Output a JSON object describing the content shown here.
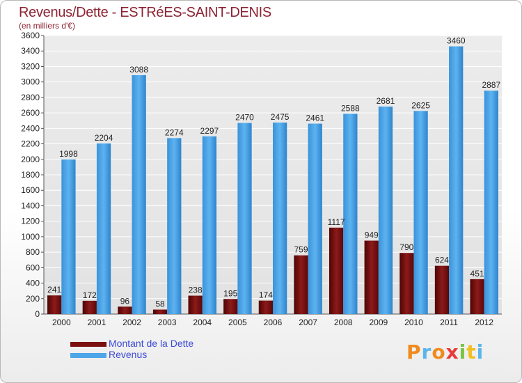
{
  "chart_data": {
    "type": "bar",
    "title": "Revenus/Dette - ESTRéES-SAINT-DENIS",
    "subtitle": "(en milliers d'€)",
    "categories": [
      "2000",
      "2001",
      "2002",
      "2003",
      "2004",
      "2005",
      "2006",
      "2007",
      "2008",
      "2009",
      "2010",
      "2011",
      "2012"
    ],
    "series": [
      {
        "name": "Montant de la Dette",
        "color": "#7a1010",
        "values": [
          241,
          172,
          96,
          58,
          238,
          195,
          174,
          759,
          1117,
          949,
          790,
          624,
          451
        ]
      },
      {
        "name": "Revenus",
        "color": "#4da6e8",
        "values": [
          1998,
          2204,
          3088,
          2274,
          2297,
          2470,
          2475,
          2461,
          2588,
          2681,
          2625,
          3460,
          2887
        ]
      }
    ],
    "ylim": [
      0,
      3600
    ],
    "yticks": [
      "0",
      "200",
      "400",
      "600",
      "800",
      "1000",
      "1200",
      "1400",
      "1600",
      "1800",
      "2000",
      "2200",
      "2400",
      "2600",
      "2800",
      "3000",
      "3200",
      "3400",
      "3600"
    ],
    "grid": true,
    "legend_position": "bottom-left"
  },
  "legend": {
    "debt_label": "Montant de la Dette",
    "revenue_label": "Revenus"
  },
  "logo_text": "Proxiti"
}
